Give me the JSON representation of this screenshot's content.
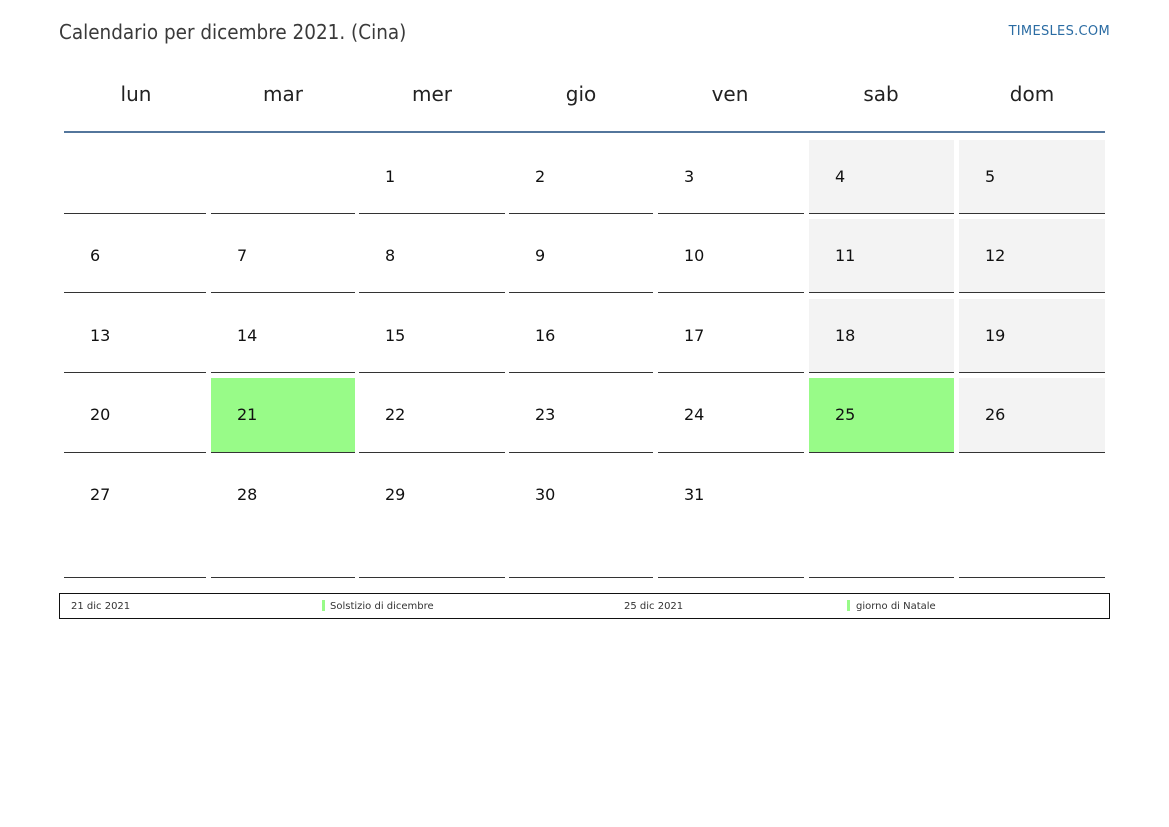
{
  "title": "Calendario per dicembre 2021. (Cina)",
  "site": "TIMESLES.COM",
  "weekdays": [
    "lun",
    "mar",
    "mer",
    "gio",
    "ven",
    "sab",
    "dom"
  ],
  "weeks": [
    [
      "",
      "",
      "1",
      "2",
      "3",
      "4",
      "5"
    ],
    [
      "6",
      "7",
      "8",
      "9",
      "10",
      "11",
      "12"
    ],
    [
      "13",
      "14",
      "15",
      "16",
      "17",
      "18",
      "19"
    ],
    [
      "20",
      "21",
      "22",
      "23",
      "24",
      "25",
      "26"
    ],
    [
      "27",
      "28",
      "29",
      "30",
      "31",
      "",
      ""
    ]
  ],
  "holiday_days": [
    "21",
    "25"
  ],
  "colors": {
    "holiday": "#98fb88",
    "weekend": "#f3f3f3",
    "header_line": "#53769c",
    "site_link": "#2b6ca3"
  },
  "legend": [
    {
      "date": "21 dic 2021",
      "name": "Solstizio di dicembre"
    },
    {
      "date": "25 dic 2021",
      "name": "giorno di Natale"
    }
  ]
}
